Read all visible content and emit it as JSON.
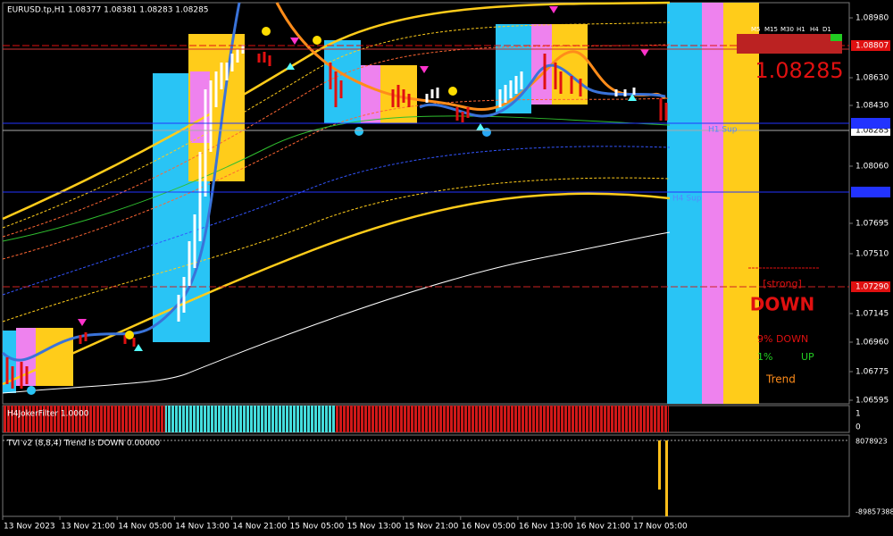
{
  "header": {
    "symbol_line": "EURUSD.tp,H1  1.08377 1.08381 1.08283 1.08285"
  },
  "price_axis": {
    "labels": [
      "1.08980",
      "1.08630",
      "1.08430",
      "1.08060",
      "1.07695",
      "1.07510",
      "1.07145",
      "1.06960",
      "1.06775",
      "1.06595"
    ],
    "boxes": [
      "1.08807",
      "1.08285",
      "1.07290"
    ]
  },
  "lines": {
    "h1": "H1 Sup",
    "h4": "H4 Sup"
  },
  "dashboard": {
    "timeframes": [
      "M5",
      "M15",
      "M30",
      "H1",
      "H4",
      "D1"
    ],
    "price": "1.08285",
    "strength": "[strong]",
    "direction": "DOWN",
    "down_pct": "9% DOWN",
    "up_pct": "1%",
    "up_word": "UP",
    "trend": "Trend"
  },
  "panel1": {
    "title": "H4JokerFilter 1.0000",
    "axis": [
      "1",
      "0"
    ]
  },
  "panel2": {
    "title": "TVI v2 (8,8,4) Trend is DOWN 0.00000",
    "axis": [
      "8078923",
      "-89857388"
    ]
  },
  "time_axis": [
    "13 Nov 2023",
    "13 Nov 21:00",
    "14 Nov 05:00",
    "14 Nov 13:00",
    "14 Nov 21:00",
    "15 Nov 05:00",
    "15 Nov 13:00",
    "15 Nov 21:00",
    "16 Nov 05:00",
    "16 Nov 13:00",
    "16 Nov 21:00",
    "17 Nov 05:00"
  ]
}
